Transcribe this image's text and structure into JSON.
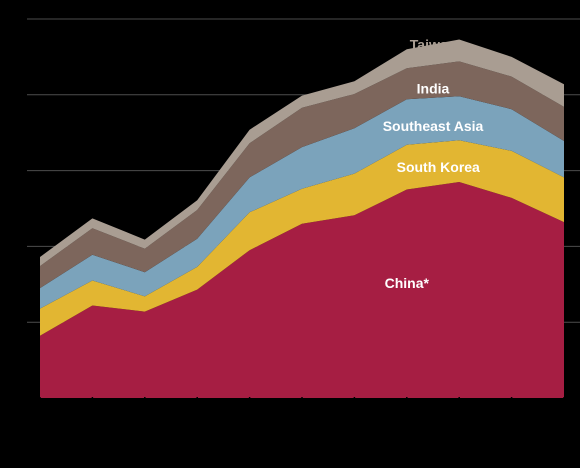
{
  "chart_data": {
    "type": "area",
    "stacked": true,
    "x": [
      1,
      2,
      3,
      4,
      5,
      6,
      7,
      8,
      9,
      10,
      11
    ],
    "ylim": [
      0,
      5
    ],
    "grid": true,
    "series": [
      {
        "name": "China*",
        "values": [
          0.82,
          1.22,
          1.14,
          1.43,
          1.95,
          2.3,
          2.41,
          2.75,
          2.85,
          2.64,
          2.32
        ],
        "color": "#A61E43",
        "label_color": "#FFFFFF"
      },
      {
        "name": "South Korea",
        "values": [
          0.36,
          0.33,
          0.2,
          0.3,
          0.5,
          0.46,
          0.55,
          0.59,
          0.55,
          0.62,
          0.59
        ],
        "color": "#E2B632",
        "label_color": "#FFFFFF"
      },
      {
        "name": "Southeast Asia",
        "values": [
          0.27,
          0.34,
          0.32,
          0.37,
          0.46,
          0.55,
          0.6,
          0.6,
          0.58,
          0.55,
          0.48
        ],
        "color": "#7BA3BB",
        "label_color": "#FFFFFF"
      },
      {
        "name": "India",
        "values": [
          0.29,
          0.35,
          0.31,
          0.38,
          0.45,
          0.52,
          0.45,
          0.41,
          0.46,
          0.43,
          0.45
        ],
        "color": "#7D665C",
        "label_color": "#FFFFFF"
      },
      {
        "name": "Taiwan",
        "values": [
          0.12,
          0.13,
          0.12,
          0.13,
          0.18,
          0.16,
          0.17,
          0.25,
          0.29,
          0.26,
          0.3
        ],
        "color": "#A99D92",
        "label_color": "#A99D92"
      }
    ],
    "labels": [
      {
        "series": "China*",
        "x": 8.0,
        "y": 1.45
      },
      {
        "series": "South Korea",
        "x": 8.6,
        "y": 2.98
      },
      {
        "series": "Southeast Asia",
        "x": 8.5,
        "y": 3.52
      },
      {
        "series": "India",
        "x": 8.5,
        "y": 4.02
      },
      {
        "series": "Taiwan",
        "x": 8.5,
        "y": 4.6
      }
    ]
  }
}
